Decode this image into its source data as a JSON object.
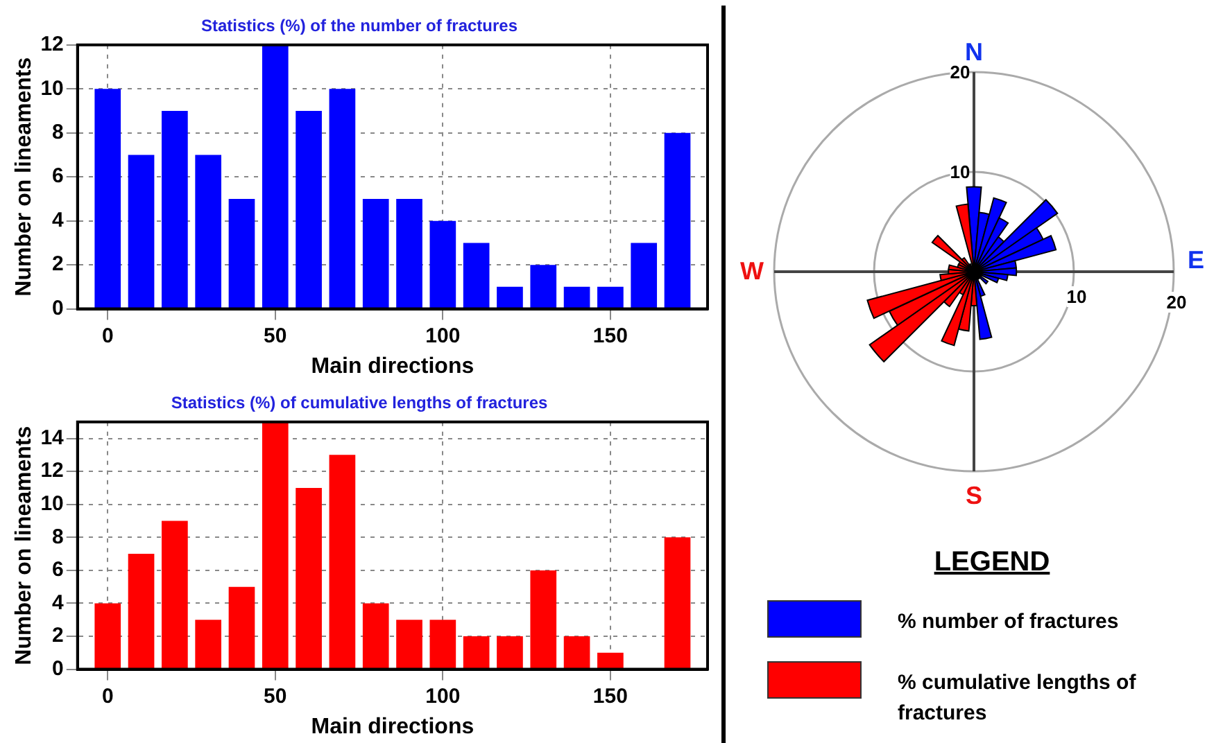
{
  "chart_data": [
    {
      "type": "bar",
      "title": "Statistics (%) of the number of fractures",
      "xlabel": "Main directions",
      "ylabel": "Number on lineaments",
      "x": [
        0,
        10,
        20,
        30,
        40,
        50,
        60,
        70,
        80,
        90,
        100,
        110,
        120,
        130,
        140,
        150,
        160,
        170
      ],
      "values": [
        10,
        7,
        9,
        7,
        5,
        12,
        9,
        10,
        5,
        5,
        4,
        3,
        1,
        2,
        1,
        1,
        3,
        8
      ],
      "color": "#0000ff",
      "xlim": [
        -9,
        179
      ],
      "xticks": [
        0,
        50,
        100,
        150
      ],
      "ylim": [
        0,
        12
      ],
      "yticks": [
        0,
        2,
        4,
        6,
        8,
        10,
        12
      ],
      "grid": true
    },
    {
      "type": "bar",
      "title": "Statistics (%) of cumulative lengths of fractures",
      "xlabel": "Main directions",
      "ylabel": "Number on lineaments",
      "x": [
        0,
        10,
        20,
        30,
        40,
        50,
        60,
        70,
        80,
        90,
        100,
        110,
        120,
        130,
        140,
        150,
        160,
        170
      ],
      "values": [
        4,
        7,
        9,
        3,
        5,
        15,
        11,
        13,
        4,
        3,
        3,
        2,
        2,
        6,
        2,
        1,
        0,
        8
      ],
      "color": "#ff0000",
      "xlim": [
        -9,
        179
      ],
      "xticks": [
        0,
        50,
        100,
        150
      ],
      "ylim": [
        0,
        15
      ],
      "yticks": [
        0,
        2,
        4,
        6,
        8,
        10,
        12,
        14
      ],
      "grid": true
    },
    {
      "type": "other",
      "legend_title": "LEGEND",
      "legend": "bottom",
      "annotations": [
        "N",
        "E",
        "S",
        "W",
        "20",
        "10",
        "10",
        "20"
      ],
      "series": [
        {
          "name": "% number of fractures",
          "color": "#0000ff"
        },
        {
          "name": "% cumulative lengths of fractures",
          "color": "#ff0000"
        }
      ]
    }
  ]
}
